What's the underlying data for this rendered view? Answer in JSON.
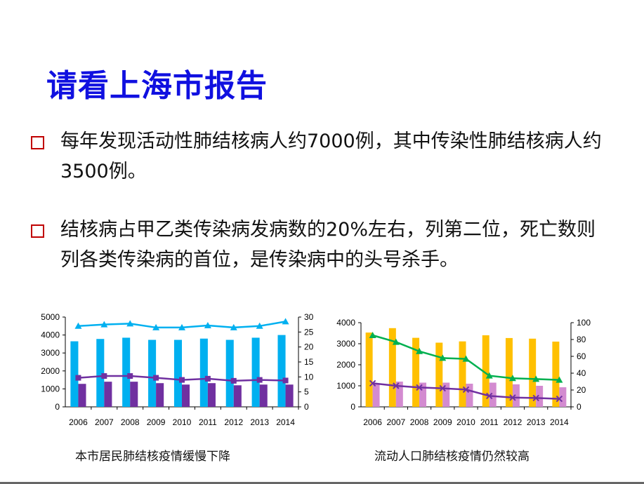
{
  "title": "请看上海市报告",
  "bullets": [
    "每年发现活动性肺结核病人约7000例，其中传染性肺结核病人约3500例。",
    "结核病占甲乙类传染病发病数的20%左右，列第二位，死亡数则列各类传染病的首位，是传染病中的头号杀手。"
  ],
  "chart_data": [
    {
      "type": "bar",
      "title": "本市居民肺结核疫情缓慢下降",
      "categories": [
        "2006",
        "2007",
        "2008",
        "2009",
        "2010",
        "2011",
        "2012",
        "2013",
        "2014"
      ],
      "ylim": [
        0,
        5000
      ],
      "y_ticks": [
        "0",
        "1000",
        "2000",
        "3000",
        "4000",
        "5000"
      ],
      "y2lim": [
        0,
        30
      ],
      "y2_ticks": [
        "0",
        "5",
        "10",
        "15",
        "20",
        "25",
        "30"
      ],
      "series": [
        {
          "name": "bar1",
          "type": "bar",
          "axis": "left",
          "color": "#00b0f0",
          "values": [
            3650,
            3780,
            3850,
            3730,
            3730,
            3800,
            3730,
            3850,
            4000
          ]
        },
        {
          "name": "bar2",
          "type": "bar",
          "axis": "left",
          "color": "#7030a0",
          "values": [
            1280,
            1400,
            1400,
            1320,
            1240,
            1320,
            1200,
            1240,
            1240
          ]
        },
        {
          "name": "line1",
          "type": "line",
          "axis": "right",
          "color": "#00b0f0",
          "marker": "triangle",
          "values": [
            27,
            27.5,
            27.8,
            26.5,
            26.5,
            27.2,
            26.5,
            27,
            28.5
          ]
        },
        {
          "name": "line2",
          "type": "line",
          "axis": "right",
          "color": "#7030a0",
          "marker": "square",
          "values": [
            9.7,
            10.3,
            10.3,
            9.7,
            9,
            9.4,
            8.7,
            9,
            8.8
          ]
        }
      ]
    },
    {
      "type": "bar",
      "title": "流动人口肺结核疫情仍然较高",
      "categories": [
        "2006",
        "2007",
        "2008",
        "2009",
        "2010",
        "2011",
        "2012",
        "2013",
        "2014"
      ],
      "ylim": [
        0,
        4000
      ],
      "y_ticks": [
        "0",
        "1000",
        "2000",
        "3000",
        "4000"
      ],
      "y2lim": [
        0,
        100
      ],
      "y2_ticks": [
        "0",
        "20",
        "40",
        "60",
        "80",
        "100"
      ],
      "series": [
        {
          "name": "bar1",
          "type": "bar",
          "axis": "left",
          "color": "#ffc000",
          "values": [
            3530,
            3740,
            3280,
            3050,
            3110,
            3400,
            3270,
            3240,
            3100
          ]
        },
        {
          "name": "bar2",
          "type": "bar",
          "axis": "left",
          "color": "#d38bd0",
          "values": [
            1080,
            1200,
            1150,
            1150,
            1100,
            1150,
            1070,
            1000,
            930
          ]
        },
        {
          "name": "line1",
          "type": "line",
          "axis": "right",
          "color": "#00b050",
          "marker": "triangle",
          "values": [
            85,
            77,
            66,
            58,
            57,
            37,
            34,
            33,
            32
          ]
        },
        {
          "name": "line2",
          "type": "line",
          "axis": "right",
          "color": "#7030a0",
          "marker": "x",
          "values": [
            28,
            25,
            23,
            22,
            20.5,
            13,
            11,
            10.5,
            9.5
          ]
        }
      ]
    }
  ]
}
